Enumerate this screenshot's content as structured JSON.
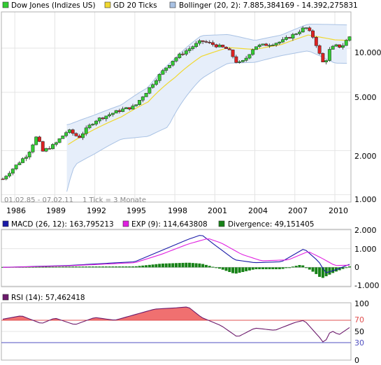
{
  "colors": {
    "background": "#ffffff",
    "up": "#33cc33",
    "down": "#dd2222",
    "gd": "#f0d830",
    "bollinger_line": "#a9c2e4",
    "bollinger_fill": "#e6eefa",
    "macd": "#1a1aa8",
    "exp": "#e020e0",
    "divergence": "#178217",
    "rsi_line": "#6c1a6c",
    "rsi_fill": "#f07070",
    "rsi_70": "#e05050",
    "rsi_30": "#5050c0",
    "text": "#000000",
    "muted": "#888888"
  },
  "price_panel": {
    "legend": [
      {
        "label": "Dow Jones (Indizes US)",
        "color": "#33cc33"
      },
      {
        "label": "GD 20 Ticks",
        "color": "#f0d830"
      },
      {
        "label": "Bollinger (20, 2): 7.885,384169 - 14.392,275831",
        "color": "#a9c2e4"
      }
    ],
    "range_label": "01.02.85 - 07.02.11",
    "tick_label": "1 Tick = 3 Monate",
    "x_ticks": [
      "1986",
      "1989",
      "1992",
      "1995",
      "1998",
      "2001",
      "2004",
      "2007",
      "2010"
    ],
    "y_ticks": [
      "10.000",
      "5.000",
      "2.000",
      "1.000"
    ]
  },
  "macd_panel": {
    "legend": [
      {
        "label": "MACD (26, 12): 163,795213",
        "color": "#1a1aa8"
      },
      {
        "label": "EXP (9): 114,643808",
        "color": "#e020e0"
      },
      {
        "label": "Divergence: 49,151405",
        "color": "#178217"
      }
    ],
    "y_ticks": [
      "2.000",
      "1.000",
      "0",
      "-1.000"
    ]
  },
  "rsi_panel": {
    "legend": [
      {
        "label": "RSI (14): 57,462418",
        "color": "#6c1a6c"
      }
    ],
    "y_ticks": [
      "100",
      "70",
      "50",
      "30",
      "0"
    ]
  },
  "chart_data": [
    {
      "type": "candlestick",
      "title": "Dow Jones (Indizes US)",
      "x_unit": "quarter",
      "x_range": [
        "1985-02-01",
        "2011-02-07"
      ],
      "y_scale": "log",
      "ylim": [
        900,
        17500
      ],
      "close_anchors": [
        {
          "x": 1985.1,
          "y": 1280
        },
        {
          "x": 1986.0,
          "y": 1550
        },
        {
          "x": 1987.0,
          "y": 1900
        },
        {
          "x": 1987.7,
          "y": 2550
        },
        {
          "x": 1988.0,
          "y": 1950
        },
        {
          "x": 1989.0,
          "y": 2200
        },
        {
          "x": 1990.0,
          "y": 2750
        },
        {
          "x": 1990.8,
          "y": 2450
        },
        {
          "x": 1992.0,
          "y": 3200
        },
        {
          "x": 1994.0,
          "y": 3800
        },
        {
          "x": 1995.0,
          "y": 4000
        },
        {
          "x": 1996.0,
          "y": 5200
        },
        {
          "x": 1997.0,
          "y": 6800
        },
        {
          "x": 1998.0,
          "y": 8500
        },
        {
          "x": 1999.0,
          "y": 9800
        },
        {
          "x": 2000.0,
          "y": 11200
        },
        {
          "x": 2001.0,
          "y": 10500
        },
        {
          "x": 2002.0,
          "y": 9800
        },
        {
          "x": 2002.7,
          "y": 7800
        },
        {
          "x": 2003.2,
          "y": 8200
        },
        {
          "x": 2004.0,
          "y": 10300
        },
        {
          "x": 2005.0,
          "y": 10600
        },
        {
          "x": 2006.0,
          "y": 11100
        },
        {
          "x": 2007.0,
          "y": 12500
        },
        {
          "x": 2007.8,
          "y": 13900
        },
        {
          "x": 2008.4,
          "y": 11800
        },
        {
          "x": 2008.9,
          "y": 8800
        },
        {
          "x": 2009.2,
          "y": 7600
        },
        {
          "x": 2009.6,
          "y": 9700
        },
        {
          "x": 2010.0,
          "y": 10400
        },
        {
          "x": 2010.5,
          "y": 10200
        },
        {
          "x": 2011.1,
          "y": 12000
        }
      ],
      "gd20_anchors": [
        {
          "x": 1990.0,
          "y": 2200
        },
        {
          "x": 1992.0,
          "y": 2800
        },
        {
          "x": 1994.0,
          "y": 3400
        },
        {
          "x": 1996.0,
          "y": 4300
        },
        {
          "x": 1998.0,
          "y": 6300
        },
        {
          "x": 2000.0,
          "y": 8800
        },
        {
          "x": 2002.0,
          "y": 10100
        },
        {
          "x": 2004.0,
          "y": 9800
        },
        {
          "x": 2006.0,
          "y": 10600
        },
        {
          "x": 2008.0,
          "y": 12300
        },
        {
          "x": 2010.0,
          "y": 11400
        },
        {
          "x": 2011.1,
          "y": 11300
        }
      ],
      "bollinger_upper_anchors": [
        {
          "x": 1990.0,
          "y": 3000
        },
        {
          "x": 1992.0,
          "y": 3500
        },
        {
          "x": 1994.0,
          "y": 4100
        },
        {
          "x": 1996.0,
          "y": 5400
        },
        {
          "x": 1998.0,
          "y": 8500
        },
        {
          "x": 2000.0,
          "y": 12200
        },
        {
          "x": 2002.0,
          "y": 12400
        },
        {
          "x": 2004.0,
          "y": 11300
        },
        {
          "x": 2006.0,
          "y": 12300
        },
        {
          "x": 2008.0,
          "y": 14600
        },
        {
          "x": 2010.0,
          "y": 14500
        },
        {
          "x": 2011.1,
          "y": 14392
        }
      ],
      "bollinger_lower_anchors": [
        {
          "x": 1989.9,
          "y": 1050
        },
        {
          "x": 1990.5,
          "y": 1600
        },
        {
          "x": 1992.0,
          "y": 1900
        },
        {
          "x": 1994.0,
          "y": 2400
        },
        {
          "x": 1996.0,
          "y": 2500
        },
        {
          "x": 1997.5,
          "y": 2900
        },
        {
          "x": 2000.0,
          "y": 6200
        },
        {
          "x": 2002.0,
          "y": 7900
        },
        {
          "x": 2004.0,
          "y": 8000
        },
        {
          "x": 2006.0,
          "y": 8900
        },
        {
          "x": 2008.0,
          "y": 9600
        },
        {
          "x": 2010.0,
          "y": 7900
        },
        {
          "x": 2011.1,
          "y": 7885
        }
      ]
    },
    {
      "type": "line",
      "title": "MACD (26, 12)",
      "ylim": [
        -1000,
        2000
      ],
      "series": [
        {
          "name": "MACD (26, 12)",
          "anchors": [
            {
              "x": 1985.1,
              "y": 0
            },
            {
              "x": 1990.0,
              "y": 100
            },
            {
              "x": 1995.0,
              "y": 300
            },
            {
              "x": 1997.0,
              "y": 900
            },
            {
              "x": 1999.0,
              "y": 1500
            },
            {
              "x": 2000.0,
              "y": 1750
            },
            {
              "x": 2001.0,
              "y": 1200
            },
            {
              "x": 2002.5,
              "y": 400
            },
            {
              "x": 2004.0,
              "y": 250
            },
            {
              "x": 2006.0,
              "y": 300
            },
            {
              "x": 2007.7,
              "y": 1000
            },
            {
              "x": 2008.8,
              "y": 300
            },
            {
              "x": 2009.3,
              "y": -300
            },
            {
              "x": 2010.0,
              "y": -150
            },
            {
              "x": 2011.1,
              "y": 164
            }
          ]
        },
        {
          "name": "EXP (9)",
          "anchors": [
            {
              "x": 1985.1,
              "y": 0
            },
            {
              "x": 1990.0,
              "y": 80
            },
            {
              "x": 1995.0,
              "y": 250
            },
            {
              "x": 1997.0,
              "y": 700
            },
            {
              "x": 1999.0,
              "y": 1250
            },
            {
              "x": 2000.5,
              "y": 1550
            },
            {
              "x": 2001.5,
              "y": 1300
            },
            {
              "x": 2003.0,
              "y": 700
            },
            {
              "x": 2004.5,
              "y": 350
            },
            {
              "x": 2006.5,
              "y": 400
            },
            {
              "x": 2008.0,
              "y": 850
            },
            {
              "x": 2009.0,
              "y": 500
            },
            {
              "x": 2010.0,
              "y": 100
            },
            {
              "x": 2011.1,
              "y": 115
            }
          ]
        }
      ],
      "divergence_anchors": [
        {
          "x": 1985.1,
          "y": 20
        },
        {
          "x": 1990.0,
          "y": 40
        },
        {
          "x": 1995.0,
          "y": 50
        },
        {
          "x": 1997.0,
          "y": 200
        },
        {
          "x": 1999.0,
          "y": 250
        },
        {
          "x": 2000.0,
          "y": 200
        },
        {
          "x": 2001.5,
          "y": -100
        },
        {
          "x": 2002.5,
          "y": -350
        },
        {
          "x": 2004.0,
          "y": -100
        },
        {
          "x": 2006.0,
          "y": -100
        },
        {
          "x": 2007.5,
          "y": 150
        },
        {
          "x": 2008.5,
          "y": -300
        },
        {
          "x": 2009.0,
          "y": -600
        },
        {
          "x": 2010.0,
          "y": -250
        },
        {
          "x": 2011.1,
          "y": 49
        }
      ]
    },
    {
      "type": "line",
      "title": "RSI (14)",
      "ylim": [
        0,
        100
      ],
      "reference_lines": [
        70,
        30
      ],
      "anchors": [
        {
          "x": 1985.1,
          "y": 72
        },
        {
          "x": 1986.5,
          "y": 78
        },
        {
          "x": 1988.0,
          "y": 64
        },
        {
          "x": 1989.0,
          "y": 74
        },
        {
          "x": 1990.5,
          "y": 62
        },
        {
          "x": 1992.0,
          "y": 75
        },
        {
          "x": 1993.5,
          "y": 70
        },
        {
          "x": 1995.0,
          "y": 80
        },
        {
          "x": 1996.5,
          "y": 90
        },
        {
          "x": 1998.0,
          "y": 92
        },
        {
          "x": 1999.0,
          "y": 94
        },
        {
          "x": 2000.0,
          "y": 75
        },
        {
          "x": 2001.5,
          "y": 60
        },
        {
          "x": 2002.7,
          "y": 40
        },
        {
          "x": 2004.0,
          "y": 56
        },
        {
          "x": 2005.5,
          "y": 52
        },
        {
          "x": 2007.0,
          "y": 66
        },
        {
          "x": 2007.7,
          "y": 70
        },
        {
          "x": 2008.9,
          "y": 38
        },
        {
          "x": 2009.2,
          "y": 28
        },
        {
          "x": 2009.7,
          "y": 52
        },
        {
          "x": 2010.3,
          "y": 44
        },
        {
          "x": 2011.1,
          "y": 57
        }
      ]
    }
  ]
}
